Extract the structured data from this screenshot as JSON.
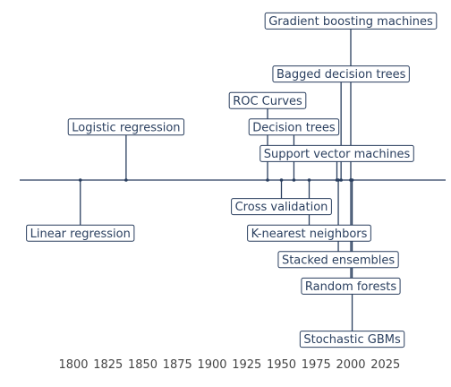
{
  "chart_data": {
    "type": "timeline",
    "title": "",
    "xlabel": "",
    "ylabel": "",
    "xlim": [
      1782,
      2075
    ],
    "x_ticks": [
      1800,
      1825,
      1850,
      1875,
      1900,
      1925,
      1950,
      1975,
      2000,
      2025
    ],
    "grid": false,
    "events": [
      {
        "label": "Linear regression",
        "year": 1805,
        "level": -2
      },
      {
        "label": "Logistic regression",
        "year": 1838,
        "level": 2
      },
      {
        "label": "ROC Curves",
        "year": 1940,
        "level": 3
      },
      {
        "label": "Cross validation",
        "year": 1950,
        "level": -1
      },
      {
        "label": "Decision trees",
        "year": 1959,
        "level": 2
      },
      {
        "label": "K-nearest neighbors",
        "year": 1970,
        "level": -2
      },
      {
        "label": "Support vector machines",
        "year": 1990,
        "level": 1
      },
      {
        "label": "Stacked ensembles",
        "year": 1991,
        "level": -3
      },
      {
        "label": "Bagged decision trees",
        "year": 1993,
        "level": 4
      },
      {
        "label": "Random forests",
        "year": 2000,
        "level": -4
      },
      {
        "label": "Gradient boosting machines",
        "year": 2000,
        "level": 6
      },
      {
        "label": "Stochastic GBMs",
        "year": 2001,
        "level": -6
      }
    ]
  }
}
